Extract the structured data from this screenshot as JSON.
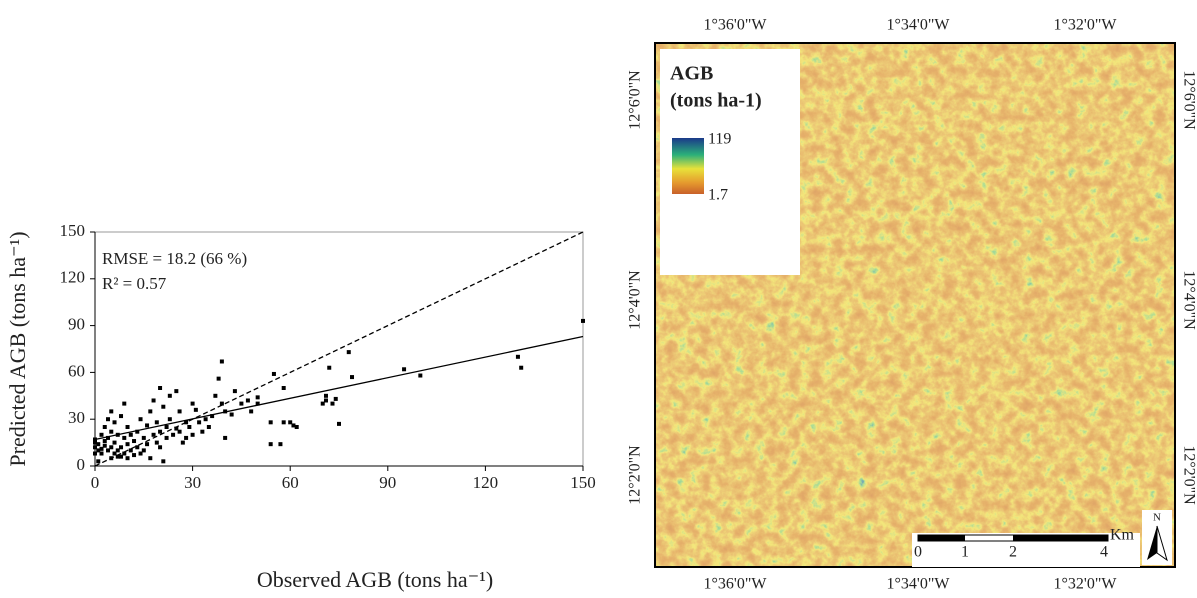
{
  "chart_data": {
    "type": "scatter",
    "x_label": "Observed AGB (tons ha⁻¹)",
    "y_label": "Predicted AGB (tons ha⁻¹)",
    "annotations": [
      "RMSE = 18.2 (66 %)",
      "R² = 0.57"
    ],
    "xlim": [
      0,
      150
    ],
    "ylim": [
      0,
      150
    ],
    "xticks": [
      0,
      30,
      60,
      90,
      120,
      150
    ],
    "yticks": [
      0,
      30,
      60,
      90,
      120,
      150
    ],
    "color": "#000000",
    "x": [
      0,
      0,
      0,
      0,
      1,
      1,
      1,
      2,
      2,
      2,
      3,
      3,
      3,
      4,
      4,
      4,
      5,
      5,
      5,
      5,
      6,
      6,
      6,
      7,
      7,
      7,
      8,
      8,
      8,
      9,
      9,
      9,
      10,
      10,
      10,
      11,
      11,
      12,
      12,
      13,
      13,
      14,
      14,
      15,
      15,
      16,
      16,
      17,
      17,
      18,
      18,
      19,
      19,
      20,
      20,
      20,
      21,
      21,
      22,
      22,
      23,
      23,
      24,
      25,
      25,
      26,
      26,
      27,
      28,
      28,
      29,
      30,
      30,
      31,
      32,
      33,
      34,
      35,
      36,
      37,
      38,
      39,
      39,
      40,
      40,
      42,
      43,
      45,
      47,
      48,
      50,
      50,
      54,
      54,
      55,
      57,
      58,
      58,
      60,
      61,
      62,
      70,
      71,
      71,
      72,
      73,
      74,
      75,
      78,
      79,
      95,
      100,
      130,
      131,
      150
    ],
    "values": [
      8,
      12,
      15,
      17,
      10,
      14,
      3,
      20,
      11,
      8,
      25,
      13,
      16,
      18,
      10,
      30,
      12,
      22,
      35,
      5,
      8,
      15,
      28,
      10,
      20,
      6,
      32,
      12,
      6,
      40,
      18,
      8,
      25,
      14,
      5,
      20,
      10,
      7,
      16,
      22,
      12,
      8,
      30,
      18,
      10,
      26,
      14,
      5,
      35,
      20,
      42,
      15,
      28,
      50,
      22,
      12,
      3,
      38,
      25,
      18,
      30,
      45,
      20,
      48,
      24,
      22,
      35,
      15,
      28,
      18,
      25,
      40,
      20,
      36,
      28,
      22,
      30,
      25,
      32,
      45,
      56,
      67,
      40,
      18,
      35,
      33,
      48,
      40,
      42,
      35,
      40,
      44,
      28,
      14,
      59,
      14,
      28,
      50,
      28,
      26,
      25,
      40,
      42,
      45,
      63,
      40,
      43,
      27,
      73,
      57,
      62,
      58,
      70,
      63,
      93
    ],
    "fit_line": {
      "x": [
        0,
        150
      ],
      "values": [
        17,
        83
      ]
    },
    "identity_line": {
      "x": [
        0,
        150
      ],
      "values": [
        0,
        150
      ]
    }
  },
  "map": {
    "top_labels": [
      "1°36'0\"W",
      "1°34'0\"W",
      "1°32'0\"W"
    ],
    "bottom_labels": [
      "1°36'0\"W",
      "1°34'0\"W",
      "1°32'0\"W"
    ],
    "left_labels": [
      "12°6'0\"N",
      "12°4'0\"N",
      "12°2'0\"N"
    ],
    "right_labels": [
      "12°6'0\"N",
      "12°4'0\"N",
      "12°2'0\"N"
    ],
    "legend": {
      "title": "AGB",
      "unit": "(tons ha-1)",
      "max": 119,
      "min": 1.7
    },
    "scale_bar": {
      "labels": [
        0,
        1,
        2,
        4
      ],
      "unit": "Km"
    },
    "north": "N"
  }
}
